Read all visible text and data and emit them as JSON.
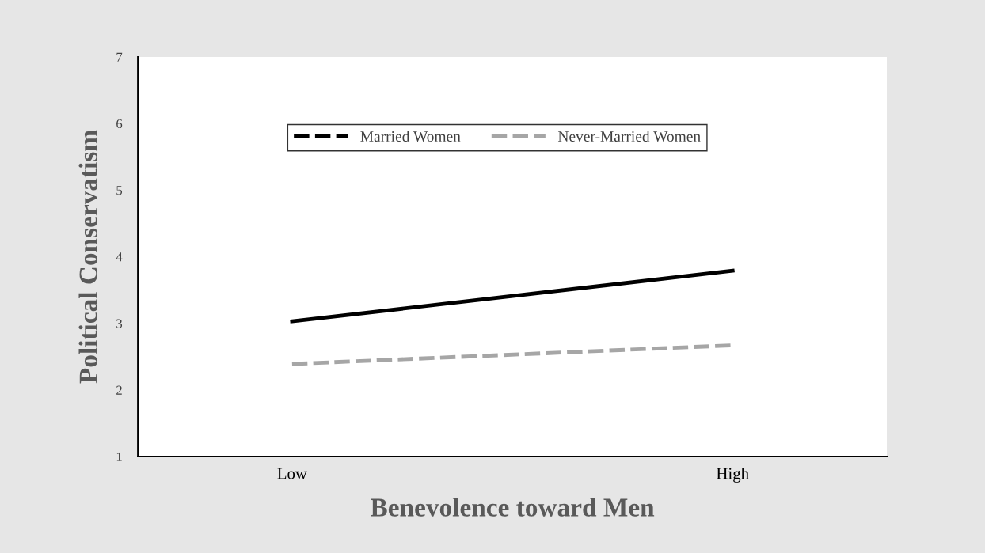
{
  "chart_data": {
    "type": "line",
    "xlabel": "Benevolence toward Men",
    "ylabel": "Political Conservatism",
    "categories": [
      "Low",
      "High"
    ],
    "ylim": [
      1,
      7
    ],
    "yticks": [
      1,
      2,
      3,
      4,
      5,
      6,
      7
    ],
    "series": [
      {
        "name": "Married Women",
        "color": "#000000",
        "values": [
          3.03,
          3.79
        ],
        "line_style": "solid"
      },
      {
        "name": "Never-Married Women",
        "color": "#a6a6a6",
        "values": [
          2.39,
          2.67
        ],
        "line_style": "dashed"
      }
    ],
    "legend": "top",
    "grid": false,
    "marker": "none"
  }
}
